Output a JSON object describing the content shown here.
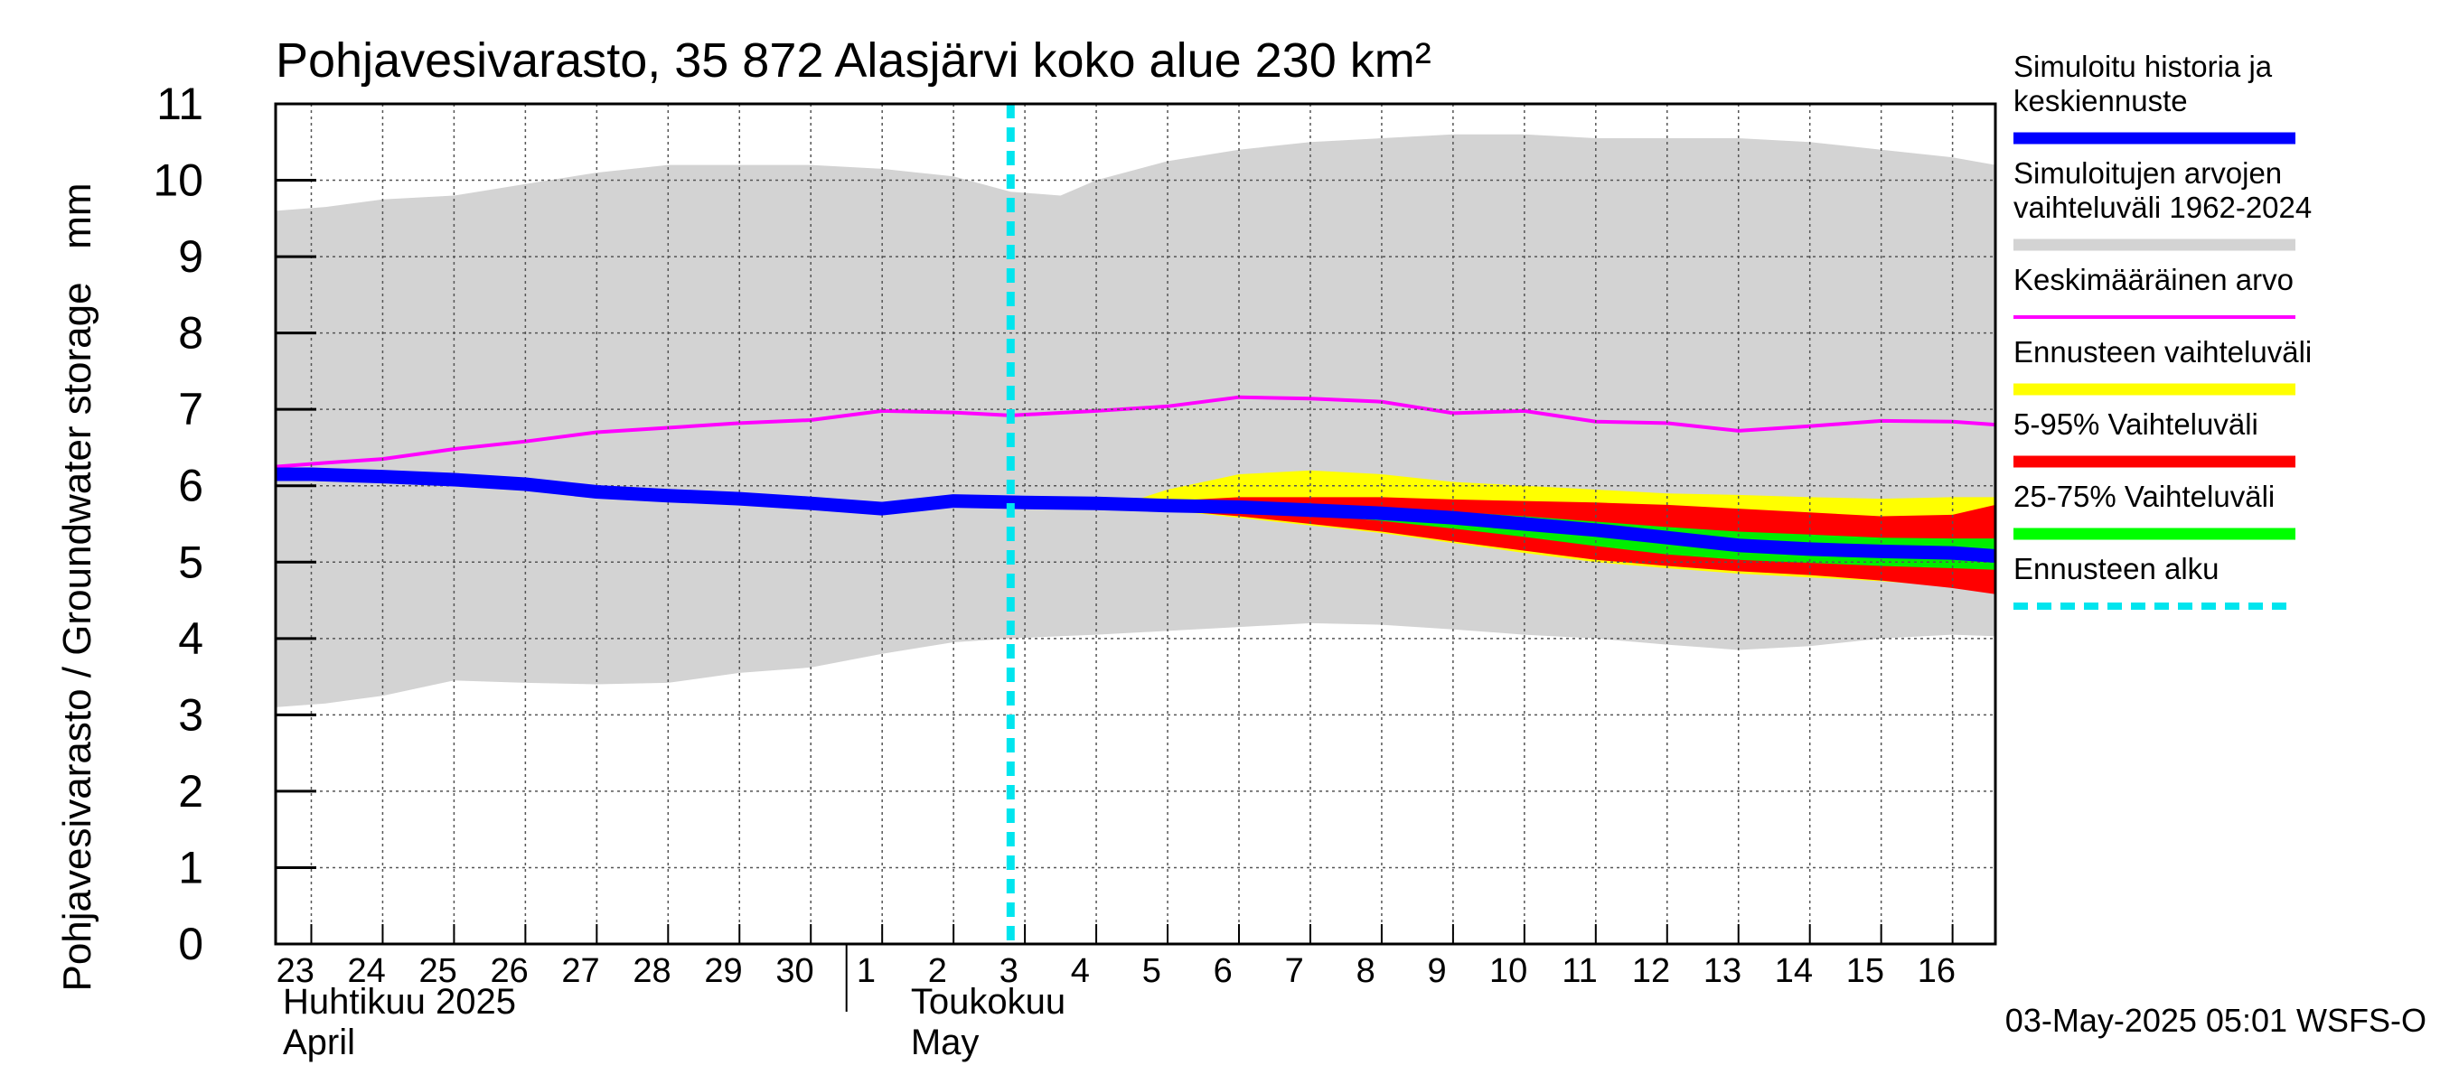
{
  "chart_data": {
    "type": "area",
    "title": "Pohjavesivarasto, 35 872 Alasjärvi koko alue 230 km²",
    "ylabel": "Pohjavesivarasto / Groundwater storage   mm",
    "ylim": [
      0,
      11
    ],
    "yticks": [
      "0",
      "1",
      "2",
      "3",
      "4",
      "5",
      "6",
      "7",
      "8",
      "9",
      "10",
      "11"
    ],
    "x_day_labels": [
      "23",
      "24",
      "25",
      "26",
      "27",
      "28",
      "29",
      "30",
      "1",
      "2",
      "3",
      "4",
      "5",
      "6",
      "7",
      "8",
      "9",
      "10",
      "11",
      "12",
      "13",
      "14",
      "15",
      "16"
    ],
    "x_days": [
      23,
      24,
      25,
      26,
      27,
      28,
      29,
      30,
      31,
      32,
      33,
      34,
      35,
      36,
      37,
      38,
      39,
      40,
      41,
      42,
      43,
      44,
      45,
      46
    ],
    "xlim": [
      22.5,
      46.6
    ],
    "month_labels": [
      {
        "fi": "Huhtikuu  2025",
        "en": "April",
        "start_day": 22.5
      },
      {
        "fi": "Toukokuu",
        "en": "May",
        "start_day": 31.3
      }
    ],
    "month_boundary_day": 30.5,
    "forecast_start_day": 32.8,
    "grid": true,
    "legend_position": "right",
    "timestamp": "03-May-2025 05:01 WSFS-O",
    "legend": [
      {
        "label": "Simuloitu historia ja keskiennuste",
        "lines": [
          "Simuloitu historia ja",
          "keskiennuste"
        ],
        "color": "#0000ff",
        "style": "thick"
      },
      {
        "label": "Simuloitujen arvojen vaihteluväli 1962-2024",
        "lines": [
          "Simuloitujen arvojen",
          "vaihteluväli 1962-2024"
        ],
        "color": "#d3d3d3",
        "style": "thick"
      },
      {
        "label": "Keskimääräinen arvo",
        "lines": [
          "Keskimääräinen arvo"
        ],
        "color": "#ff00ff",
        "style": "thin"
      },
      {
        "label": "Ennusteen vaihteluväli",
        "lines": [
          "Ennusteen vaihteluväli"
        ],
        "color": "#ffff00",
        "style": "thick"
      },
      {
        "label": "5-95% Vaihteluväli",
        "lines": [
          "5-95% Vaihteluväli"
        ],
        "color": "#ff0000",
        "style": "thick"
      },
      {
        "label": "25-75% Vaihteluväli",
        "lines": [
          "25-75% Vaihteluväli"
        ],
        "color": "#00ff00",
        "style": "thick"
      },
      {
        "label": "Ennusteen alku",
        "lines": [
          "Ennusteen alku"
        ],
        "color": "#00e5ee",
        "style": "dashed"
      }
    ],
    "series": {
      "hist_range": {
        "x": [
          22.5,
          23.2,
          24,
          25,
          26,
          27,
          28,
          29,
          30,
          31,
          32,
          32.8,
          33.5,
          34,
          35,
          36,
          37,
          38,
          39,
          40,
          41,
          42,
          43,
          44,
          45,
          46,
          46.6
        ],
        "upper": [
          9.6,
          9.65,
          9.75,
          9.8,
          9.95,
          10.1,
          10.2,
          10.2,
          10.2,
          10.15,
          10.05,
          9.85,
          9.8,
          10.0,
          10.25,
          10.4,
          10.5,
          10.55,
          10.6,
          10.6,
          10.55,
          10.55,
          10.55,
          10.5,
          10.4,
          10.3,
          10.2
        ],
        "lower": [
          3.1,
          3.15,
          3.25,
          3.45,
          3.42,
          3.4,
          3.42,
          3.55,
          3.62,
          3.8,
          3.95,
          4.0,
          4.03,
          4.05,
          4.1,
          4.15,
          4.2,
          4.18,
          4.12,
          4.05,
          4.0,
          3.92,
          3.85,
          3.9,
          4.0,
          4.05,
          4.03
        ]
      },
      "mean": {
        "x": [
          22.5,
          23.2,
          24,
          25,
          26,
          27,
          28,
          29,
          30,
          31,
          32,
          32.8,
          34,
          35,
          36,
          37,
          38,
          39,
          40,
          41,
          42,
          43,
          44,
          45,
          46,
          46.6
        ],
        "y": [
          6.25,
          6.3,
          6.35,
          6.48,
          6.58,
          6.7,
          6.76,
          6.82,
          6.86,
          6.98,
          6.96,
          6.92,
          6.98,
          7.04,
          7.16,
          7.14,
          7.1,
          6.95,
          6.98,
          6.84,
          6.82,
          6.72,
          6.78,
          6.85,
          6.84,
          6.8
        ]
      },
      "forecast_range": {
        "x": [
          34.5,
          35,
          36,
          37,
          38,
          39,
          40,
          41,
          42,
          43,
          44,
          45,
          46,
          46.6
        ],
        "upper": [
          5.8,
          5.95,
          6.15,
          6.2,
          6.15,
          6.05,
          6.0,
          5.95,
          5.9,
          5.88,
          5.85,
          5.83,
          5.85,
          5.85
        ],
        "lower": [
          5.75,
          5.68,
          5.58,
          5.48,
          5.38,
          5.25,
          5.12,
          5.0,
          4.92,
          4.85,
          4.8,
          4.75,
          4.68,
          4.62
        ]
      },
      "p5_95": {
        "x": [
          34.5,
          35,
          36,
          37,
          38,
          39,
          40,
          41,
          42,
          43,
          44,
          45,
          46,
          46.6
        ],
        "upper": [
          5.75,
          5.8,
          5.85,
          5.85,
          5.85,
          5.82,
          5.8,
          5.78,
          5.75,
          5.7,
          5.65,
          5.6,
          5.62,
          5.75
        ],
        "lower": [
          5.73,
          5.68,
          5.6,
          5.5,
          5.4,
          5.27,
          5.15,
          5.03,
          4.95,
          4.88,
          4.83,
          4.76,
          4.66,
          4.58
        ]
      },
      "p25_75": {
        "x": [
          34.5,
          35,
          36,
          37,
          38,
          39,
          40,
          41,
          42,
          43,
          44,
          45,
          46,
          46.6
        ],
        "upper": [
          5.74,
          5.76,
          5.76,
          5.74,
          5.7,
          5.66,
          5.6,
          5.53,
          5.46,
          5.4,
          5.36,
          5.32,
          5.31,
          5.31
        ],
        "lower": [
          5.73,
          5.72,
          5.68,
          5.62,
          5.54,
          5.44,
          5.33,
          5.21,
          5.1,
          5.03,
          4.99,
          4.95,
          4.92,
          4.9
        ]
      },
      "median": {
        "x": [
          22.5,
          23,
          24,
          25,
          26,
          27,
          28,
          29,
          30,
          31,
          32,
          33,
          34,
          35,
          36,
          37,
          38,
          39,
          40,
          41,
          42,
          43,
          44,
          45,
          46,
          46.6
        ],
        "y": [
          6.15,
          6.15,
          6.12,
          6.08,
          6.02,
          5.92,
          5.87,
          5.83,
          5.77,
          5.7,
          5.8,
          5.78,
          5.77,
          5.74,
          5.72,
          5.68,
          5.64,
          5.58,
          5.5,
          5.42,
          5.32,
          5.22,
          5.17,
          5.14,
          5.12,
          5.08
        ]
      }
    }
  }
}
